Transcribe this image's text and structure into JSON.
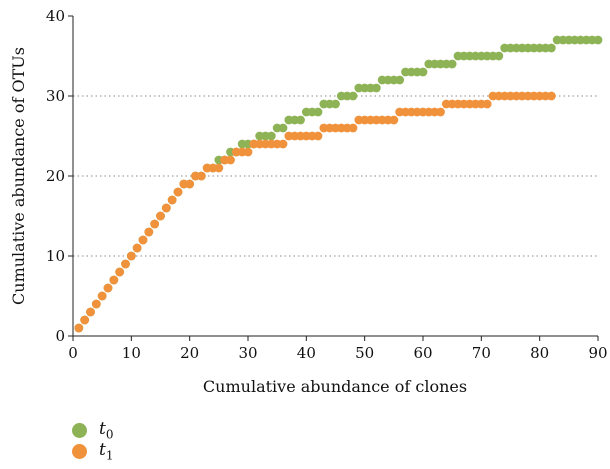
{
  "chart_data": {
    "type": "scatter",
    "xlabel": "Cumulative abundance of clones",
    "ylabel": "Cumulative abundance of OTUs",
    "xlim": [
      0,
      90
    ],
    "ylim": [
      0,
      40
    ],
    "xticks": [
      0,
      10,
      20,
      30,
      40,
      50,
      60,
      70,
      80,
      90
    ],
    "yticks": [
      0,
      10,
      20,
      30,
      40
    ],
    "grid": "horizontal dotted at 10, 20, 30",
    "legend_position": "bottom-left",
    "series": [
      {
        "name_base": "t",
        "name_sub": "0",
        "color": "#8db356",
        "steps": [
          [
            1,
            1
          ],
          [
            2,
            2
          ],
          [
            3,
            3
          ],
          [
            4,
            4
          ],
          [
            5,
            5
          ],
          [
            6,
            6
          ],
          [
            7,
            7
          ],
          [
            8,
            8
          ],
          [
            9,
            9
          ],
          [
            10,
            10
          ],
          [
            11,
            11
          ],
          [
            12,
            12
          ],
          [
            13,
            13
          ],
          [
            14,
            14
          ],
          [
            15,
            15
          ],
          [
            16,
            16
          ],
          [
            17,
            17
          ],
          [
            18,
            18
          ],
          [
            19,
            19
          ],
          [
            21,
            20
          ],
          [
            23,
            21
          ],
          [
            25,
            22
          ],
          [
            27,
            23
          ],
          [
            29,
            24
          ],
          [
            31,
            24
          ],
          [
            32,
            25
          ],
          [
            34,
            25
          ],
          [
            35,
            26
          ],
          [
            37,
            27
          ],
          [
            39,
            27
          ],
          [
            40,
            28
          ],
          [
            42,
            28
          ],
          [
            43,
            29
          ],
          [
            45,
            29
          ],
          [
            46,
            30
          ],
          [
            48,
            30
          ],
          [
            49,
            31
          ],
          [
            52,
            31
          ],
          [
            53,
            32
          ],
          [
            56,
            32
          ],
          [
            57,
            33
          ],
          [
            60,
            33
          ],
          [
            61,
            34
          ],
          [
            65,
            34
          ],
          [
            66,
            35
          ],
          [
            73,
            35
          ],
          [
            74,
            36
          ],
          [
            82,
            36
          ],
          [
            83,
            37
          ],
          [
            90,
            37
          ]
        ]
      },
      {
        "name_base": "t",
        "name_sub": "1",
        "color": "#f0913c",
        "steps": [
          [
            1,
            1
          ],
          [
            2,
            2
          ],
          [
            3,
            3
          ],
          [
            4,
            4
          ],
          [
            5,
            5
          ],
          [
            6,
            6
          ],
          [
            7,
            7
          ],
          [
            8,
            8
          ],
          [
            9,
            9
          ],
          [
            10,
            10
          ],
          [
            11,
            11
          ],
          [
            12,
            12
          ],
          [
            13,
            13
          ],
          [
            14,
            14
          ],
          [
            15,
            15
          ],
          [
            16,
            16
          ],
          [
            17,
            17
          ],
          [
            18,
            18
          ],
          [
            19,
            19
          ],
          [
            20,
            19
          ],
          [
            21,
            20
          ],
          [
            22,
            20
          ],
          [
            23,
            21
          ],
          [
            25,
            21
          ],
          [
            26,
            22
          ],
          [
            27,
            22
          ],
          [
            28,
            23
          ],
          [
            30,
            23
          ],
          [
            31,
            24
          ],
          [
            36,
            24
          ],
          [
            37,
            25
          ],
          [
            42,
            25
          ],
          [
            43,
            26
          ],
          [
            48,
            26
          ],
          [
            49,
            27
          ],
          [
            55,
            27
          ],
          [
            56,
            28
          ],
          [
            63,
            28
          ],
          [
            64,
            29
          ],
          [
            71,
            29
          ],
          [
            72,
            30
          ],
          [
            82,
            30
          ]
        ]
      }
    ]
  }
}
